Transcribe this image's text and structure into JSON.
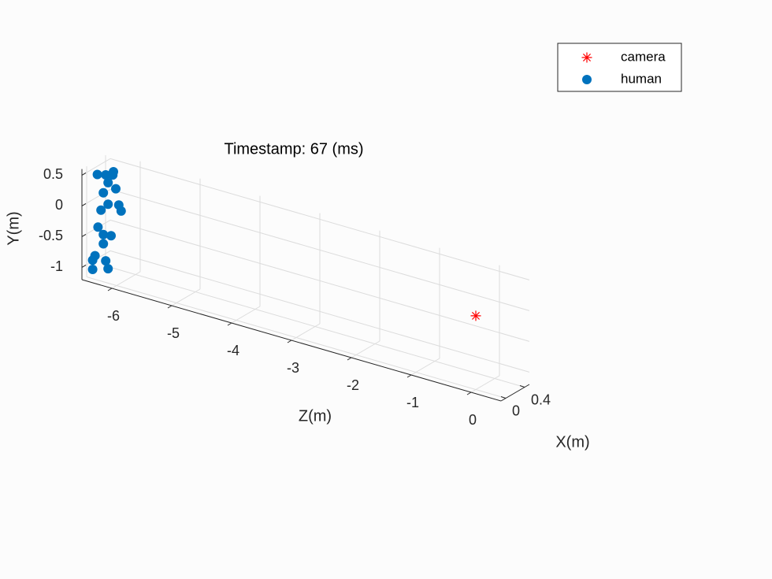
{
  "chart_data": {
    "type": "scatter",
    "title": "Timestamp: 67 (ms)",
    "xlabel": "X(m)",
    "ylabel": "Y(m)",
    "zlabel": "Z(m)",
    "xlim": [
      -0.1,
      0.5
    ],
    "ylim": [
      -1.2,
      0.6
    ],
    "zlim": [
      -6.5,
      0.5
    ],
    "xticks": [
      0,
      0.4
    ],
    "yticks": [
      0.5,
      0,
      -0.5,
      -1
    ],
    "zticks": [
      -6,
      -5,
      -4,
      -3,
      -2,
      -1,
      0
    ],
    "grid": true,
    "legend": "upper right",
    "series": [
      {
        "name": "camera",
        "color": "#ff0000",
        "marker": "asterisk",
        "x": [
          0
        ],
        "y": [
          0
        ],
        "z": [
          0
        ]
      },
      {
        "name": "human",
        "color": "#0072bd",
        "marker": "circle",
        "x": [
          0.15,
          0.25,
          0.3,
          0.1,
          0.2,
          0.1,
          0.3,
          0.05,
          0.3,
          0.35,
          0.2,
          0.05,
          0.1,
          0.2,
          0.1,
          0.05,
          0.0,
          0.15,
          0.0,
          0.2
        ],
        "y": [
          0.45,
          0.47,
          0.38,
          0.45,
          0.3,
          0.18,
          0.17,
          -0.08,
          -0.08,
          -0.2,
          -0.05,
          -0.37,
          -0.5,
          -0.55,
          -0.65,
          -0.85,
          -0.9,
          -0.95,
          -1.05,
          -1.1
        ],
        "z": [
          -6.3,
          -6.25,
          -6.3,
          -6.4,
          -6.3,
          -6.3,
          -6.25,
          -6.3,
          -6.2,
          -6.2,
          -6.3,
          -6.35,
          -6.3,
          -6.25,
          -6.3,
          -6.4,
          -6.4,
          -6.3,
          -6.4,
          -6.3
        ]
      }
    ]
  }
}
